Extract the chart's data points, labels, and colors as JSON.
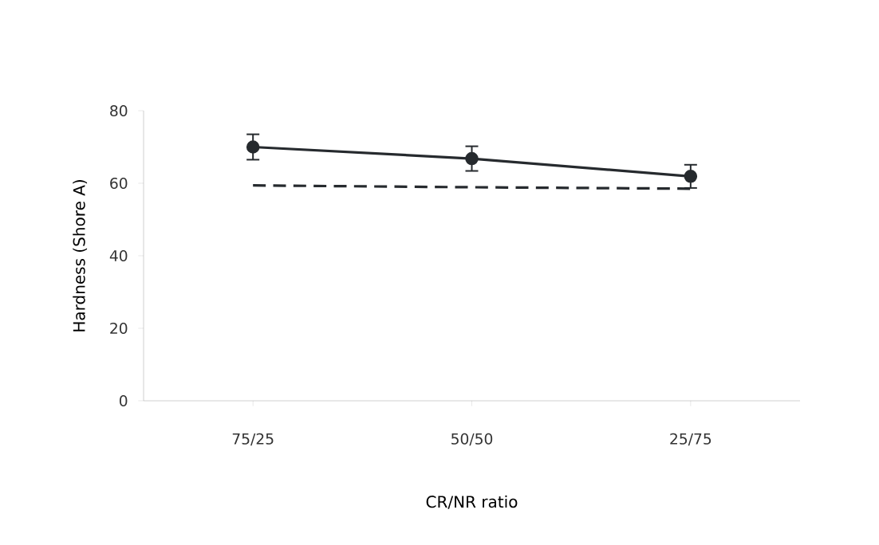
{
  "chart_data": {
    "type": "line",
    "xlabel": "CR/NR ratio",
    "ylabel": "Hardness (Shore A)",
    "categories": [
      "75/25",
      "50/50",
      "25/75"
    ],
    "series": [
      {
        "color": "#262a2e",
        "values": [
          70.0,
          66.8,
          61.9
        ],
        "errors": [
          3.5,
          3.4,
          3.2
        ],
        "marker": "circle",
        "line_style": "solid"
      },
      {
        "color": "#262a2e",
        "values": [
          59.4,
          58.9,
          58.5
        ],
        "marker": "none",
        "line_style": "dashed"
      }
    ],
    "ylim": [
      0,
      80
    ],
    "yticks": [
      0,
      20,
      40,
      60,
      80
    ],
    "grid": false
  }
}
